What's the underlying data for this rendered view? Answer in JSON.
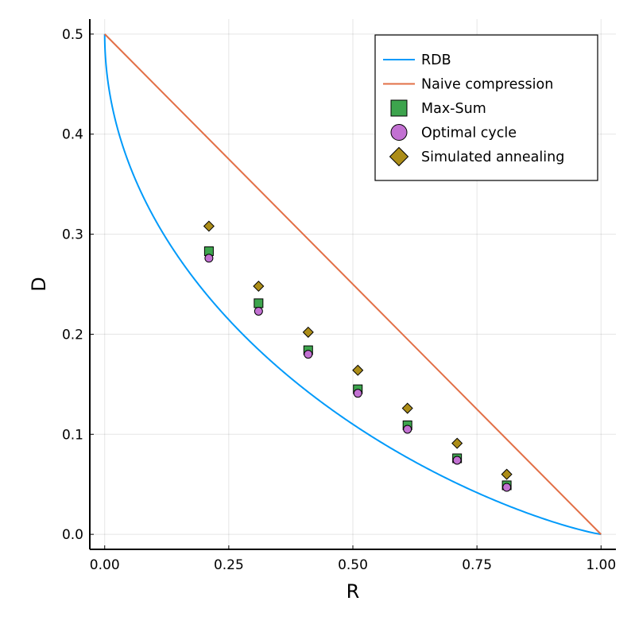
{
  "chart_data": {
    "type": "scatter",
    "title": "",
    "xlabel": "R",
    "ylabel": "D",
    "xlim": [
      -0.03,
      1.03
    ],
    "ylim": [
      -0.015,
      0.515
    ],
    "x_ticks": [
      {
        "value": 0.0,
        "label": "0.00"
      },
      {
        "value": 0.25,
        "label": "0.25"
      },
      {
        "value": 0.5,
        "label": "0.50"
      },
      {
        "value": 0.75,
        "label": "0.75"
      },
      {
        "value": 1.0,
        "label": "1.00"
      }
    ],
    "y_ticks": [
      {
        "value": 0.0,
        "label": "0.0"
      },
      {
        "value": 0.1,
        "label": "0.1"
      },
      {
        "value": 0.2,
        "label": "0.2"
      },
      {
        "value": 0.3,
        "label": "0.3"
      },
      {
        "value": 0.4,
        "label": "0.4"
      },
      {
        "value": 0.5,
        "label": "0.5"
      }
    ],
    "grid": true,
    "legend_position": "top-right",
    "series": [
      {
        "name": "RDB",
        "kind": "line",
        "color": "#009AFA",
        "formula": "rate-distortion bound for binary symmetric source, R = 1 - H2(D)"
      },
      {
        "name": "Naive compression",
        "kind": "line",
        "color": "#E26F46",
        "x": [
          0.0,
          1.0
        ],
        "y": [
          0.5,
          0.0
        ]
      },
      {
        "name": "Max-Sum",
        "kind": "scatter",
        "marker": "square",
        "color": "#3DA44D",
        "x": [
          0.21,
          0.31,
          0.41,
          0.51,
          0.61,
          0.71,
          0.81
        ],
        "y": [
          0.283,
          0.231,
          0.184,
          0.145,
          0.109,
          0.076,
          0.049
        ]
      },
      {
        "name": "Optimal cycle",
        "kind": "scatter",
        "marker": "circle",
        "color": "#C271D2",
        "x": [
          0.21,
          0.31,
          0.41,
          0.51,
          0.61,
          0.71,
          0.81
        ],
        "y": [
          0.276,
          0.223,
          0.18,
          0.141,
          0.105,
          0.074,
          0.047
        ]
      },
      {
        "name": "Simulated annealing",
        "kind": "scatter",
        "marker": "diamond",
        "color": "#AC8D18",
        "x": [
          0.21,
          0.31,
          0.41,
          0.51,
          0.61,
          0.71,
          0.81
        ],
        "y": [
          0.308,
          0.248,
          0.202,
          0.164,
          0.126,
          0.091,
          0.06
        ]
      }
    ]
  }
}
